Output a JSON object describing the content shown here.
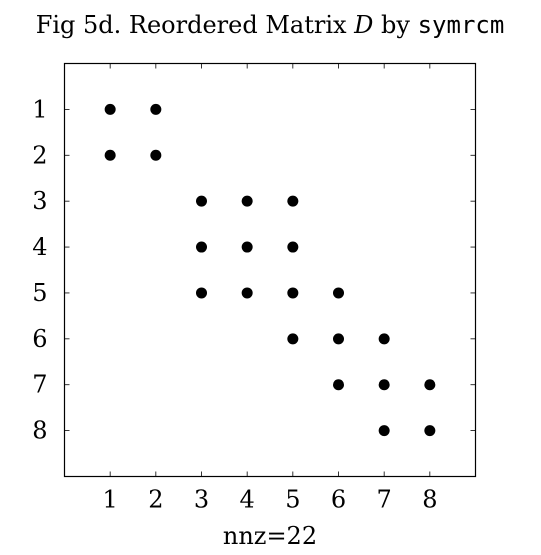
{
  "chart_data": {
    "type": "scatter",
    "title": {
      "prefix": "Fig 5d. Reordered Matrix ",
      "symbol": "D",
      "middle": " by ",
      "code": "symrcm"
    },
    "xlabel": "nnz=22",
    "ylabel": "",
    "xlim": [
      0,
      9
    ],
    "ylim": [
      9,
      0
    ],
    "y_reversed": true,
    "xticks": [
      1,
      2,
      3,
      4,
      5,
      6,
      7,
      8
    ],
    "yticks": [
      1,
      2,
      3,
      4,
      5,
      6,
      7,
      8
    ],
    "grid": false,
    "marker_color": "#000000",
    "points": [
      {
        "x": 1,
        "y": 1
      },
      {
        "x": 2,
        "y": 1
      },
      {
        "x": 1,
        "y": 2
      },
      {
        "x": 2,
        "y": 2
      },
      {
        "x": 3,
        "y": 3
      },
      {
        "x": 4,
        "y": 3
      },
      {
        "x": 5,
        "y": 3
      },
      {
        "x": 3,
        "y": 4
      },
      {
        "x": 4,
        "y": 4
      },
      {
        "x": 5,
        "y": 4
      },
      {
        "x": 3,
        "y": 5
      },
      {
        "x": 4,
        "y": 5
      },
      {
        "x": 5,
        "y": 5
      },
      {
        "x": 6,
        "y": 5
      },
      {
        "x": 5,
        "y": 6
      },
      {
        "x": 6,
        "y": 6
      },
      {
        "x": 7,
        "y": 6
      },
      {
        "x": 6,
        "y": 7
      },
      {
        "x": 7,
        "y": 7
      },
      {
        "x": 8,
        "y": 7
      },
      {
        "x": 7,
        "y": 8
      },
      {
        "x": 8,
        "y": 8
      }
    ]
  }
}
